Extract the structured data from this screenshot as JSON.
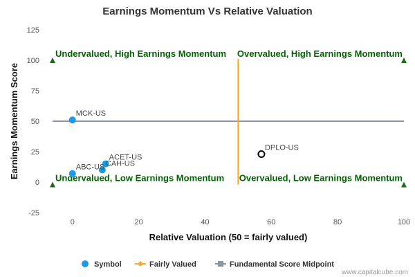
{
  "chart_data": {
    "type": "scatter",
    "title": "Earnings Momentum Vs Relative Valuation",
    "xlabel": "Relative Valuation (50 = fairly valued)",
    "ylabel": "Earnings Momentum Score",
    "xlim": [
      -6,
      100
    ],
    "ylim": [
      -25,
      125
    ],
    "xticks": [
      0,
      20,
      40,
      60,
      80,
      100
    ],
    "yticks": [
      -25,
      0,
      25,
      50,
      75,
      100,
      125
    ],
    "grid": false,
    "points": [
      {
        "label": "MCK-US",
        "x": 0,
        "y": 51,
        "color": "#1a9be6",
        "style": "filled"
      },
      {
        "label": "ACET-US",
        "x": 10,
        "y": 15,
        "color": "#1a9be6",
        "style": "filled"
      },
      {
        "label": "CAH-US",
        "x": 9,
        "y": 10,
        "color": "#1a9be6",
        "style": "filled"
      },
      {
        "label": "ABC-US",
        "x": 0,
        "y": 7,
        "color": "#1a9be6",
        "style": "filled"
      },
      {
        "label": "DPLO-US",
        "x": 57,
        "y": 23,
        "color": "#000000",
        "style": "hollow"
      }
    ],
    "fair_value_line": {
      "x": 50,
      "y_range": [
        -2,
        101
      ],
      "color": "#f5a623"
    },
    "midpoint_line": {
      "y": 50,
      "x_range": [
        -6,
        100
      ],
      "color": "#8c96a0"
    },
    "markers": [
      {
        "x": -6,
        "y": 100
      },
      {
        "x": 100,
        "y": 100
      },
      {
        "x": -6,
        "y": -2
      },
      {
        "x": 100,
        "y": -2
      }
    ],
    "quadrant_labels": [
      {
        "text": "Undervalued, High Earnings Momentum",
        "x": -6,
        "y": 100,
        "anchor": "start"
      },
      {
        "text": "Overvalued, High Earnings Momentum",
        "x": 100,
        "y": 100,
        "anchor": "end"
      },
      {
        "text": "Undervalued, Low Earnings Momentum",
        "x": -6,
        "y": -2,
        "anchor": "start"
      },
      {
        "text": "Overvalued, Low Earnings Momentum",
        "x": 100,
        "y": -2,
        "anchor": "end"
      }
    ],
    "legend": {
      "position": "bottom",
      "items": [
        {
          "label": "Symbol",
          "color": "#1a9be6",
          "kind": "dot"
        },
        {
          "label": "Fairly Valued",
          "color": "#f5a623",
          "kind": "line-diamond"
        },
        {
          "label": "Fundamental Score Midpoint",
          "color": "#8c96a0",
          "kind": "line-square"
        }
      ]
    },
    "credit": "www.capitalcube.com"
  }
}
